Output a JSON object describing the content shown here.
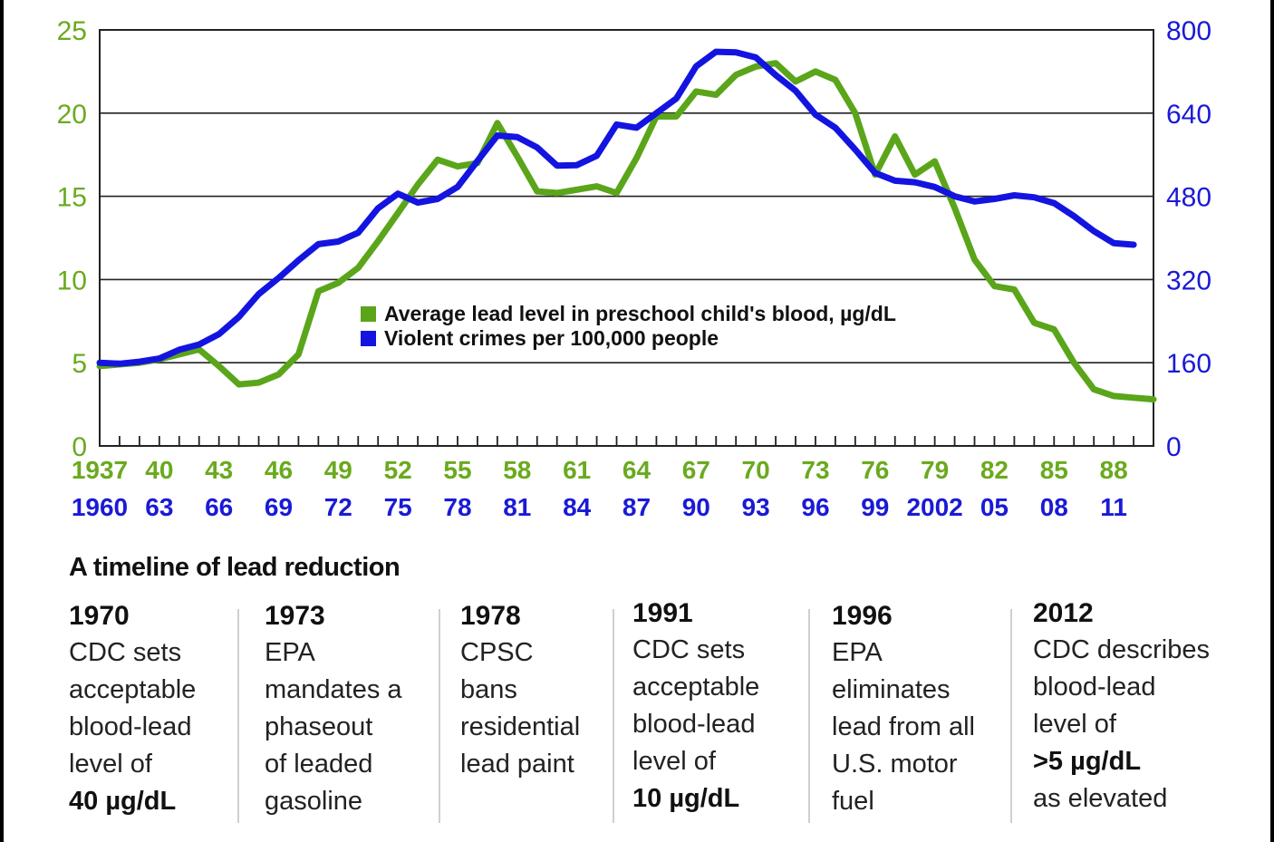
{
  "chart_data": {
    "type": "line",
    "title": "",
    "x_lead": [
      "1937",
      "40",
      "43",
      "46",
      "49",
      "52",
      "55",
      "58",
      "61",
      "64",
      "67",
      "70",
      "73",
      "76",
      "79",
      "82",
      "85",
      "88"
    ],
    "x_crime": [
      "1960",
      "63",
      "66",
      "69",
      "72",
      "75",
      "78",
      "81",
      "84",
      "87",
      "90",
      "93",
      "96",
      "99",
      "2002",
      "05",
      "08",
      "11"
    ],
    "y_left": {
      "ticks": [
        "0",
        "5",
        "10",
        "15",
        "20",
        "25"
      ],
      "range": [
        0,
        25
      ],
      "color": "#6aaa1e"
    },
    "y_right": {
      "ticks": [
        "0",
        "160",
        "320",
        "480",
        "640",
        "800"
      ],
      "range": [
        0,
        800
      ],
      "color": "#1a1ad6"
    },
    "grid": true,
    "legend": [
      {
        "label": "Average lead level in preschool child's blood, µg/dL",
        "color": "#5aa51a"
      },
      {
        "label": "Violent crimes per 100,000 people",
        "color": "#1414e0"
      }
    ],
    "legend_position": "center",
    "series": [
      {
        "color": "#5aa51a",
        "axis": "left",
        "x_start": 1937,
        "values": [
          4.8,
          4.9,
          5.0,
          5.2,
          5.5,
          5.8,
          4.8,
          3.7,
          3.8,
          4.3,
          5.5,
          9.3,
          9.8,
          10.7,
          12.3,
          14.0,
          15.7,
          17.2,
          16.8,
          17.0,
          19.4,
          17.4,
          15.3,
          15.2,
          15.4,
          15.6,
          15.2,
          17.3,
          19.8,
          19.8,
          21.3,
          21.1,
          22.3,
          22.8,
          23.0,
          21.9,
          22.5,
          22.0,
          20.0,
          16.3,
          18.6,
          16.3,
          17.1,
          14.3,
          11.2,
          9.6,
          9.4,
          7.4,
          7.0,
          5.0,
          3.4,
          3.0,
          2.9,
          2.8
        ]
      },
      {
        "color": "#1414e0",
        "axis": "right",
        "x_start": 1960,
        "values": [
          160,
          158,
          162,
          168,
          185,
          195,
          215,
          248,
          292,
          323,
          357,
          388,
          393,
          410,
          457,
          485,
          468,
          475,
          498,
          548,
          597,
          594,
          574,
          539,
          540,
          558,
          618,
          612,
          640,
          668,
          730,
          758,
          757,
          747,
          713,
          683,
          637,
          612,
          570,
          525,
          510,
          507,
          498,
          480,
          470,
          475,
          482,
          478,
          467,
          442,
          413,
          390,
          387
        ]
      }
    ]
  },
  "timeline": {
    "title": "A timeline of lead reduction",
    "entries": [
      {
        "year": "1970",
        "lines": [
          "CDC sets",
          "acceptable",
          "blood-lead",
          "level of"
        ],
        "emphasis": "40 µg/dL",
        "after": ""
      },
      {
        "year": "1973",
        "lines": [
          "EPA",
          "mandates a",
          "phaseout",
          "of leaded",
          "gasoline"
        ],
        "emphasis": "",
        "after": ""
      },
      {
        "year": "1978",
        "lines": [
          "CPSC",
          "bans",
          "residential",
          "lead paint"
        ],
        "emphasis": "",
        "after": ""
      },
      {
        "year": "1991",
        "lines": [
          "CDC sets",
          "acceptable",
          "blood-lead",
          "level of"
        ],
        "emphasis": "10 µg/dL",
        "after": ""
      },
      {
        "year": "1996",
        "lines": [
          "EPA",
          "eliminates",
          "lead from all",
          "U.S. motor",
          "fuel"
        ],
        "emphasis": "",
        "after": ""
      },
      {
        "year": "2012",
        "lines": [
          "CDC describes",
          "blood-lead",
          "level of"
        ],
        "emphasis": ">5 µg/dL",
        "after": "as elevated"
      }
    ]
  }
}
